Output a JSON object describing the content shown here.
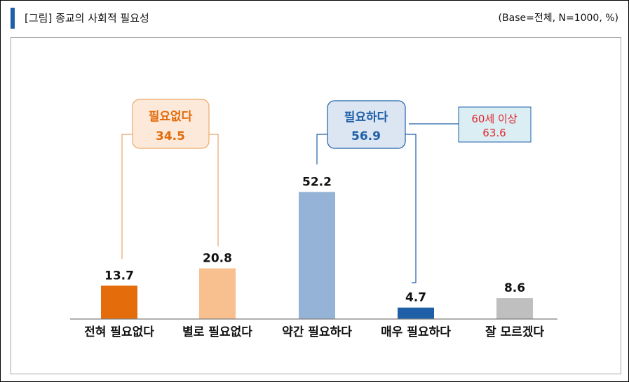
{
  "header": {
    "title": "[그림] 종교의 사회적 필요성",
    "base_note": "(Base=전체, N=1000, %)"
  },
  "colors": {
    "accent": "#1f5fa8",
    "orange_dark": "#e46c0a",
    "orange_light": "#f8c08f",
    "blue_light": "#95b3d7",
    "blue_dark": "#1f5fa8",
    "gray": "#bfbfbf",
    "orange_box_fill": "#fde9d9",
    "blue_box_fill": "#dce6f2",
    "callout_fill": "#dbeef4"
  },
  "groups": {
    "not_needed": {
      "label": "필요없다",
      "value": "34.5"
    },
    "needed": {
      "label": "필요하다",
      "value": "56.9"
    },
    "age60_callout": {
      "label": "60세 이상",
      "value": "63.6"
    }
  },
  "chart_data": {
    "type": "bar",
    "title": "[그림] 종교의 사회적 필요성",
    "categories": [
      "전혀 필요없다",
      "별로 필요없다",
      "약간 필요하다",
      "매우 필요하다",
      "잘 모르겠다"
    ],
    "values": [
      13.7,
      20.8,
      52.2,
      4.7,
      8.6
    ],
    "value_labels": [
      "13.7",
      "20.8",
      "52.2",
      "4.7",
      "8.6"
    ],
    "bar_colors": [
      "#e46c0a",
      "#f8c08f",
      "#95b3d7",
      "#1f5fa8",
      "#bfbfbf"
    ],
    "grid": false
  }
}
